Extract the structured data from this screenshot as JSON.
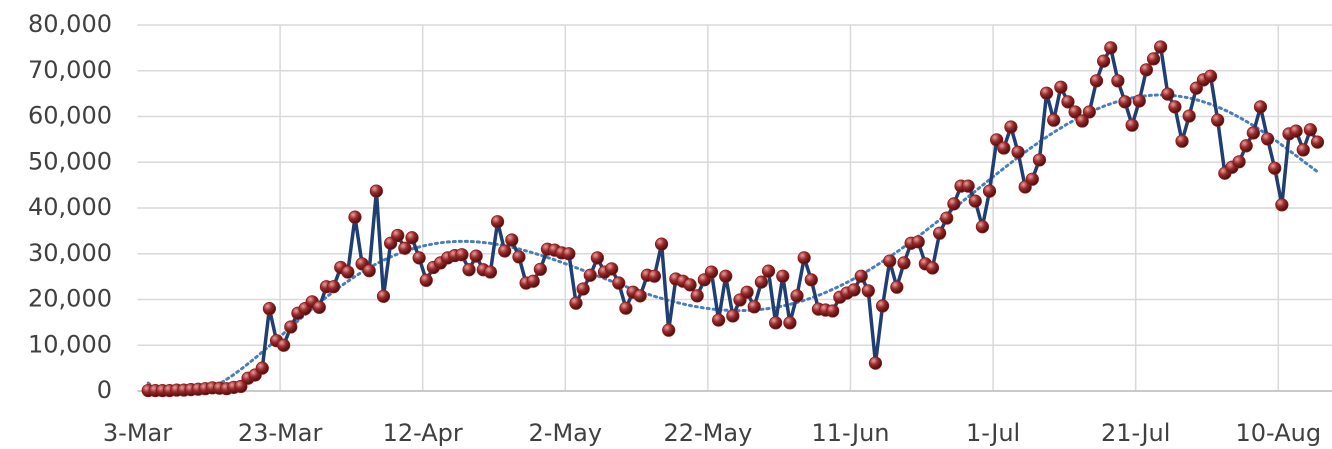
{
  "chart_data": {
    "type": "line",
    "categories": [
      "3-Mar",
      null,
      null,
      null,
      null,
      null,
      null,
      null,
      null,
      null,
      null,
      null,
      null,
      null,
      null,
      null,
      null,
      null,
      null,
      null,
      "23-Mar",
      null,
      null,
      null,
      null,
      null,
      null,
      null,
      null,
      null,
      null,
      null,
      null,
      null,
      null,
      null,
      null,
      null,
      null,
      null,
      "12-Apr",
      null,
      null,
      null,
      null,
      null,
      null,
      null,
      null,
      null,
      null,
      null,
      null,
      null,
      null,
      null,
      null,
      null,
      null,
      null,
      "2-May",
      null,
      null,
      null,
      null,
      null,
      null,
      null,
      null,
      null,
      null,
      null,
      null,
      null,
      null,
      null,
      null,
      null,
      null,
      null,
      "22-May",
      null,
      null,
      null,
      null,
      null,
      null,
      null,
      null,
      null,
      null,
      null,
      null,
      null,
      null,
      null,
      null,
      null,
      null,
      null,
      "11-Jun",
      null,
      null,
      null,
      null,
      null,
      null,
      null,
      null,
      null,
      null,
      null,
      null,
      null,
      null,
      null,
      null,
      null,
      null,
      null,
      "1-Jul",
      null,
      null,
      null,
      null,
      null,
      null,
      null,
      null,
      null,
      null,
      null,
      null,
      null,
      null,
      null,
      null,
      null,
      null,
      null,
      "21-Jul",
      null,
      null,
      null,
      null,
      null,
      null,
      null,
      null,
      null,
      null,
      null,
      null,
      null,
      null,
      null,
      null,
      null,
      null,
      null,
      "10-Aug",
      null,
      null,
      null,
      null,
      null
    ],
    "series": [
      {
        "color": "#1f3f73",
        "marker_color": "#8b1a1a",
        "values": [
          null,
          100,
          100,
          100,
          100,
          200,
          200,
          300,
          400,
          500,
          700,
          600,
          500,
          800,
          1000,
          2800,
          3500,
          5000,
          18000,
          11000,
          10000,
          14000,
          17000,
          18000,
          19500,
          18300,
          22800,
          22800,
          27000,
          26000,
          38000,
          27800,
          26300,
          43700,
          20700,
          32300,
          34000,
          31200,
          33500,
          29100,
          24200,
          27000,
          28000,
          29100,
          29600,
          29800,
          26500,
          29500,
          26500,
          26000,
          37000,
          30600,
          33000,
          29300,
          23600,
          24000,
          26600,
          31000,
          30800,
          30200,
          30000,
          19200,
          22300,
          25300,
          29100,
          26000,
          26700,
          23600,
          18100,
          21600,
          20800,
          25300,
          25100,
          32100,
          13300,
          24500,
          24000,
          23200,
          20800,
          24300,
          26000,
          15500,
          25100,
          16400,
          19900,
          21600,
          18400,
          23800,
          26200,
          14900,
          25100,
          14900,
          20800,
          29100,
          24300,
          17900,
          17700,
          17500,
          20500,
          21400,
          22100,
          25100,
          21900,
          6100,
          18600,
          28400,
          22700,
          28000,
          32300,
          32600,
          27800,
          26900,
          34500,
          37800,
          40900,
          44800,
          44800,
          41500,
          35900,
          43700,
          54900,
          53100,
          57700,
          52200,
          44600,
          46300,
          50500,
          65100,
          59200,
          66400,
          63200,
          61000,
          59000,
          61000,
          67800,
          72100,
          75000,
          67800,
          63200,
          58100,
          63400,
          70200,
          72600,
          75200,
          64900,
          62100,
          54600,
          60100,
          66200,
          68000,
          68800,
          59200,
          47600,
          48900,
          50100,
          53600,
          56400,
          62100,
          55100,
          48700,
          40700,
          56200,
          56800,
          52700,
          57100,
          54400
        ]
      }
    ],
    "trendline": {
      "type": "polynomial",
      "order": 6,
      "color": "#4a7ebb"
    },
    "ylim": [
      0,
      80000
    ],
    "yticks": [
      0,
      {
        "value": 10000,
        "label": "10,000"
      },
      {
        "value": 20000,
        "label": "20,000"
      },
      {
        "value": 30000,
        "label": "30,000"
      },
      {
        "value": 40000,
        "label": "40,000"
      },
      {
        "value": 50000,
        "label": "50,000"
      },
      {
        "value": 60000,
        "label": "60,000"
      },
      {
        "value": 70000,
        "label": "70,000"
      },
      {
        "value": 80000,
        "label": "80,000"
      }
    ],
    "grid": true
  }
}
